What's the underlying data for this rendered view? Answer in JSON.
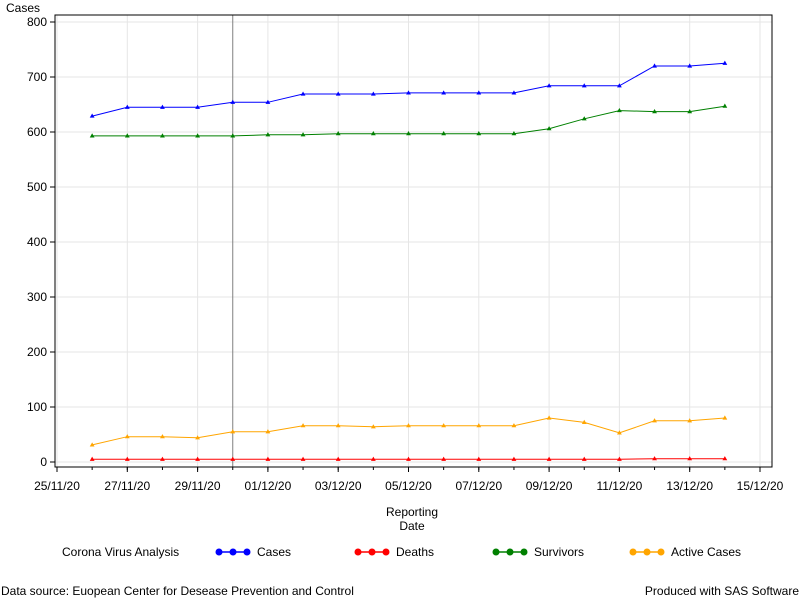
{
  "chart_data": {
    "type": "line",
    "ylabel": "Cases",
    "xlabel_lines": [
      "Reporting",
      "Date"
    ],
    "ylim": [
      0,
      800
    ],
    "yticks": [
      0,
      100,
      200,
      300,
      400,
      500,
      600,
      700,
      800
    ],
    "xlim": [
      "2020-11-25",
      "2020-12-15"
    ],
    "xticks": [
      "25/11/20",
      "27/11/20",
      "29/11/20",
      "01/12/20",
      "03/12/20",
      "05/12/20",
      "07/12/20",
      "09/12/20",
      "11/12/20",
      "13/12/20",
      "15/12/20"
    ],
    "x": [
      "2020-11-26",
      "2020-11-27",
      "2020-11-28",
      "2020-11-29",
      "2020-11-30",
      "2020-12-01",
      "2020-12-02",
      "2020-12-03",
      "2020-12-04",
      "2020-12-05",
      "2020-12-06",
      "2020-12-07",
      "2020-12-08",
      "2020-12-09",
      "2020-12-10",
      "2020-12-11",
      "2020-12-12",
      "2020-12-13",
      "2020-12-14"
    ],
    "reference_line_x": "2020-11-30",
    "grid": true,
    "series": [
      {
        "name": "Cases",
        "color": "#0000ff",
        "values": [
          629,
          645,
          645,
          645,
          654,
          654,
          669,
          669,
          669,
          671,
          671,
          671,
          671,
          684,
          684,
          684,
          720,
          720,
          725
        ]
      },
      {
        "name": "Deaths",
        "color": "#ff0000",
        "values": [
          5,
          5,
          5,
          5,
          5,
          5,
          5,
          5,
          5,
          5,
          5,
          5,
          5,
          5,
          5,
          5,
          6,
          6,
          6
        ]
      },
      {
        "name": "Survivors",
        "color": "#008000",
        "values": [
          593,
          593,
          593,
          593,
          593,
          595,
          595,
          597,
          597,
          597,
          597,
          597,
          597,
          606,
          624,
          639,
          637,
          637,
          647
        ]
      },
      {
        "name": "Active Cases",
        "color": "#ffa500",
        "values": [
          31,
          46,
          46,
          44,
          55,
          55,
          66,
          66,
          64,
          66,
          66,
          66,
          66,
          80,
          72,
          53,
          75,
          75,
          80
        ]
      }
    ],
    "legend": {
      "title": "Corona Virus Analysis",
      "placement": "bottom"
    }
  },
  "footer": {
    "source": "Data source: Euopean Center for Desease Prevention and Control",
    "credit": "Produced with SAS Software"
  }
}
